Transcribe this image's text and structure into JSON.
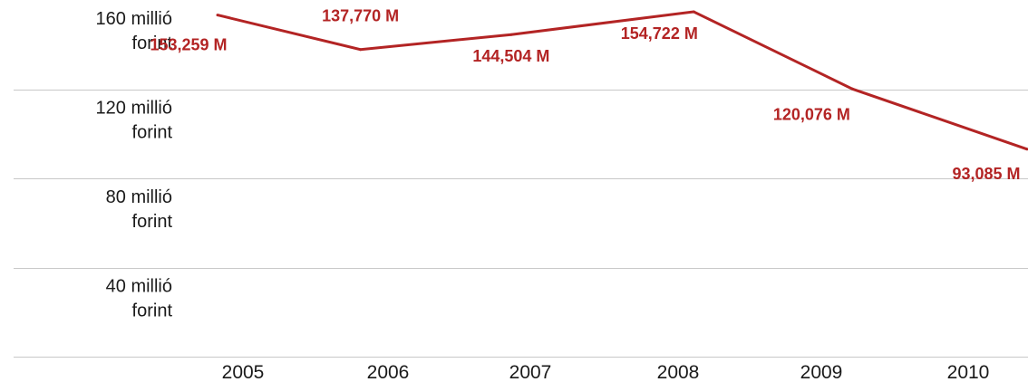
{
  "colors": {
    "line": "#b32424",
    "label": "#b32424",
    "grid": "#c8c8c8",
    "text": "#1a1a1a"
  },
  "chart_data": {
    "type": "line",
    "title": "",
    "xlabel": "",
    "ylabel": "",
    "categories": [
      "2005",
      "2006",
      "2007",
      "2008",
      "2009",
      "2010"
    ],
    "x": [
      2005.0,
      2005.9,
      2006.85,
      2008.0,
      2009.0,
      2010.1
    ],
    "series": [
      {
        "values": [
          153259,
          137770,
          144504,
          154722,
          120076,
          93085
        ],
        "labels": [
          "153,259 M",
          "137,770 M",
          "144,504 M",
          "154,722 M",
          "120,076 M",
          "93,085 M"
        ]
      }
    ],
    "y_ticks": [
      {
        "value": 160000,
        "line1": "160 millió",
        "line2": "forint"
      },
      {
        "value": 120000,
        "line1": "120 millió",
        "line2": "forint"
      },
      {
        "value": 80000,
        "line1": "80 millió",
        "line2": "forint"
      },
      {
        "value": 40000,
        "line1": "40 millió",
        "line2": "forint"
      }
    ],
    "ylim": [
      0,
      160000
    ],
    "grid": true,
    "legend": "none"
  }
}
